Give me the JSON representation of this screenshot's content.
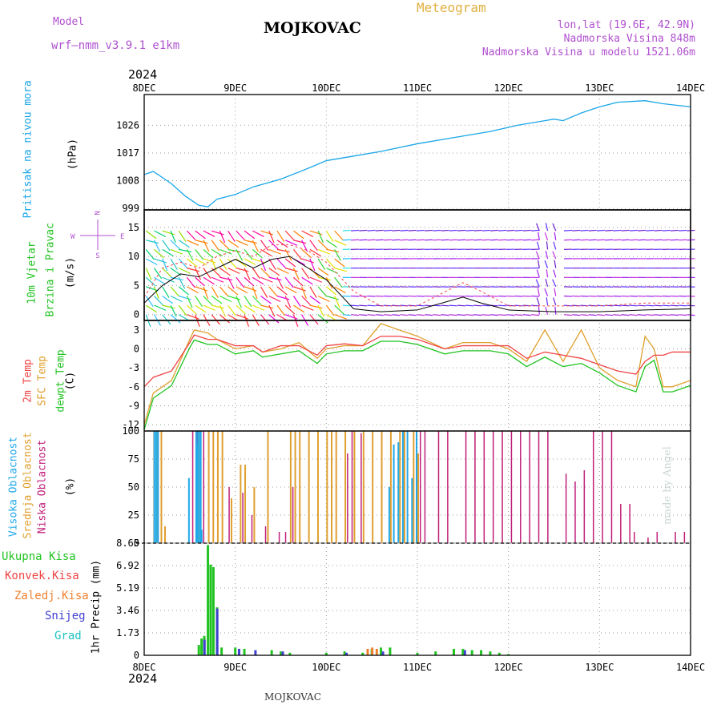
{
  "header": {
    "model_label": "Model",
    "model_name": "wrf–nmm_v3.9.1  e1km",
    "title": "MOJKOVAC",
    "meteogram": "Meteogram",
    "lonlat": "lon,lat (19.6E, 42.9N)",
    "height": "Nadmorska Visina 848m",
    "model_height": "Nadmorska Visina u modelu 1521.06m"
  },
  "top_year": "2024",
  "bottom_year": "2024",
  "footer": "MOJKOVAC",
  "watermark": "made by Angel",
  "dates": [
    "8DEC",
    "9DEC",
    "10DEC",
    "11DEC",
    "12DEC",
    "13DEC",
    "14DEC"
  ],
  "panel_labels": {
    "pressure": [
      "Pritisak na nivou mora",
      "(hPa)"
    ],
    "wind": [
      "10m Vjetar",
      "Brzina i Pravac",
      "(m/s)"
    ],
    "compass": [
      "N",
      "W",
      "E",
      "S"
    ],
    "temp": [
      "2m Temp",
      "SFC Temp",
      "dewpt Temp",
      "(C)"
    ],
    "cloud": [
      "Visoka Oblacnost",
      "Srednja Oblacnost",
      "Niska Oblacnost",
      "(%)"
    ],
    "precip_legend": [
      "Ukupna Kisa",
      "Konvek.Kisa",
      "Zaledj.Kisa",
      "Snijeg",
      "Grad"
    ],
    "precip_axis": "1hr Precip (mm)"
  },
  "colors": {
    "pressure": "#1aa6e8",
    "temp2m": "#ef4444",
    "sfc": "#e0a030",
    "dew": "#22c322",
    "high_cloud": "#20a8e8",
    "mid_cloud": "#e0a030",
    "low_cloud": "#c0207a",
    "total_rain": "#22c322",
    "conv_rain": "#ef4444",
    "frz_rain": "#f08030",
    "snow": "#4040d0",
    "hail": "#20c0c0"
  },
  "chart_data": [
    {
      "type": "line",
      "name": "pressure",
      "yticks": [
        999,
        1008,
        1017,
        1026
      ],
      "ylim": [
        998.5,
        1036
      ],
      "x_days": [
        0,
        0.1,
        0.3,
        0.45,
        0.6,
        0.7,
        0.8,
        1.0,
        1.2,
        1.5,
        1.8,
        2.0,
        2.3,
        2.6,
        3.0,
        3.4,
        3.8,
        4.1,
        4.4,
        4.5,
        4.6,
        4.8,
        5.0,
        5.2,
        5.5,
        5.7,
        6.0
      ],
      "values": [
        1010,
        1011,
        1007,
        1003,
        1000,
        999.5,
        1002,
        1003.5,
        1006,
        1008.5,
        1012,
        1014.5,
        1016,
        1017.5,
        1020,
        1022,
        1024,
        1026,
        1027.5,
        1028,
        1027.5,
        1030,
        1032,
        1033.5,
        1034,
        1033,
        1032
      ]
    },
    {
      "type": "line",
      "name": "wind_speed",
      "yticks": [
        0,
        5,
        10,
        15
      ],
      "ylim": [
        -1,
        18
      ],
      "x_days": [
        0,
        0.2,
        0.4,
        0.6,
        0.8,
        1.0,
        1.2,
        1.4,
        1.6,
        1.8,
        2.0,
        2.3,
        2.6,
        3.0,
        3.5,
        3.7,
        4.0,
        4.5,
        5.0,
        5.5,
        6.0
      ],
      "speed": [
        2,
        5,
        7,
        6.5,
        8,
        9.5,
        8,
        9.5,
        10,
        8,
        6,
        1,
        0.5,
        0.8,
        3,
        2,
        0.8,
        0.5,
        0.5,
        0.8,
        1
      ],
      "gust": [
        3,
        8,
        9,
        8,
        10,
        11,
        10,
        12,
        12,
        11,
        9,
        4,
        1.5,
        1.5,
        5.5,
        4,
        1.5,
        1.5,
        1.5,
        2,
        2
      ]
    },
    {
      "type": "line",
      "name": "temperature",
      "yticks": [
        3,
        0,
        -3,
        -6,
        -9,
        -12
      ],
      "ylim": [
        -13,
        4.5
      ],
      "x_days": [
        0,
        0.1,
        0.3,
        0.5,
        0.55,
        0.7,
        0.8,
        1.0,
        1.2,
        1.3,
        1.5,
        1.7,
        1.9,
        2.0,
        2.2,
        2.4,
        2.6,
        2.8,
        3.0,
        3.3,
        3.5,
        3.8,
        4.0,
        4.2,
        4.4,
        4.6,
        4.8,
        5.0,
        5.2,
        5.4,
        5.5,
        5.6,
        5.7,
        5.8,
        6.0
      ],
      "t2m": [
        -6,
        -4.5,
        -3.5,
        1,
        2.2,
        1.5,
        1.5,
        0.5,
        0.5,
        -0.5,
        0.5,
        0.5,
        -1,
        0.5,
        0.8,
        0.5,
        2,
        2,
        1.5,
        0,
        0.5,
        0.5,
        0.5,
        -1.5,
        -0.5,
        -1,
        -1.5,
        -2.5,
        -3.5,
        -4,
        -2,
        -1,
        -1,
        -0.5,
        -0.5
      ],
      "sfc": [
        -12,
        -7,
        -5,
        1.5,
        3,
        2.5,
        1.5,
        0,
        0.5,
        -0.5,
        0,
        1,
        -1.5,
        0,
        0.5,
        0.5,
        4,
        3,
        2,
        0,
        1,
        1,
        0,
        -2,
        3,
        -2,
        3,
        -3,
        -5,
        -6,
        2,
        0,
        -6,
        -6,
        -5
      ]
    },
    {
      "type": "bar",
      "name": "cloud_cover",
      "yticks": [
        0,
        25,
        50,
        75,
        100
      ],
      "ylim": [
        0,
        100
      ],
      "high_x": [
        0.12,
        0.14,
        0.16,
        0.5,
        0.58,
        0.59,
        0.6,
        0.62,
        0.63,
        0.64,
        0.97,
        2.7,
        2.75,
        2.8,
        2.85,
        2.9,
        2.95,
        3.0
      ],
      "high_v": [
        100,
        100,
        100,
        58,
        100,
        88,
        100,
        100,
        100,
        12,
        0,
        50,
        88,
        90,
        100,
        100,
        58,
        100
      ],
      "mid_x": [
        0.1,
        0.14,
        0.18,
        0.22,
        0.6,
        0.7,
        0.75,
        0.8,
        0.85,
        0.95,
        1.05,
        1.1,
        1.2,
        1.35,
        1.6,
        1.65,
        1.7,
        1.8,
        1.9,
        2.0,
        2.05,
        2.1,
        2.2,
        2.3,
        2.4,
        2.5,
        2.6,
        2.7,
        2.8,
        2.85,
        2.95,
        3.0
      ],
      "mid_v": [
        100,
        100,
        100,
        15,
        100,
        100,
        100,
        100,
        100,
        40,
        70,
        70,
        50,
        100,
        100,
        100,
        100,
        100,
        100,
        100,
        100,
        100,
        100,
        100,
        100,
        100,
        100,
        100,
        100,
        100,
        100,
        80
      ],
      "low_x": [
        0.12,
        0.5,
        0.55,
        0.62,
        0.9,
        1.05,
        1.15,
        1.3,
        1.45,
        1.52,
        1.6,
        2.2,
        2.25,
        2.35,
        3.0,
        3.05,
        3.2,
        3.3,
        3.5,
        3.6,
        3.7,
        3.8,
        3.9,
        4.0,
        4.1,
        4.2,
        4.3,
        4.4,
        4.6,
        4.7,
        4.8,
        4.9,
        5.0,
        5.1,
        5.2,
        5.3,
        5.35,
        5.5,
        5.6,
        5.8,
        5.9
      ],
      "low_v": [
        100,
        100,
        100,
        100,
        50,
        45,
        25,
        15,
        10,
        10,
        50,
        80,
        100,
        98,
        100,
        100,
        100,
        100,
        100,
        100,
        100,
        100,
        100,
        100,
        100,
        100,
        100,
        100,
        62,
        55,
        65,
        100,
        100,
        100,
        35,
        35,
        10,
        5,
        10,
        10,
        10
      ]
    },
    {
      "type": "bar",
      "name": "precip",
      "yticks": [
        0,
        1.73,
        3.46,
        5.19,
        6.92,
        8.65
      ],
      "ylim": [
        0,
        8.65
      ],
      "total_x": [
        0.6,
        0.63,
        0.66,
        0.7,
        0.73,
        0.76,
        0.8,
        0.85,
        1.0,
        1.1,
        1.4,
        1.5,
        1.6,
        2.0,
        2.2,
        2.4,
        2.5,
        2.6,
        2.7,
        3.0,
        3.2,
        3.4,
        3.5,
        3.6,
        3.7,
        3.8,
        3.9,
        4.0
      ],
      "total_v": [
        0.8,
        1.3,
        1.5,
        8.5,
        7.0,
        6.8,
        3.7,
        0.6,
        0.6,
        0.5,
        0.4,
        0.3,
        0.2,
        0.2,
        0.3,
        0.2,
        0.5,
        0.6,
        0.6,
        0.2,
        0.3,
        0.5,
        0.5,
        0.4,
        0.4,
        0.3,
        0.2,
        0.1
      ],
      "snow_x": [
        0.64,
        0.78,
        1.02,
        1.2,
        1.5,
        2.2,
        2.6,
        3.5
      ],
      "snow_v": [
        1.2,
        3.6,
        0.5,
        0.4,
        0.3,
        0.2,
        0.3,
        0.4
      ],
      "conv_x": [
        2.45,
        2.5,
        2.55
      ],
      "conv_v": [
        0.5,
        0.6,
        0.5
      ]
    }
  ]
}
